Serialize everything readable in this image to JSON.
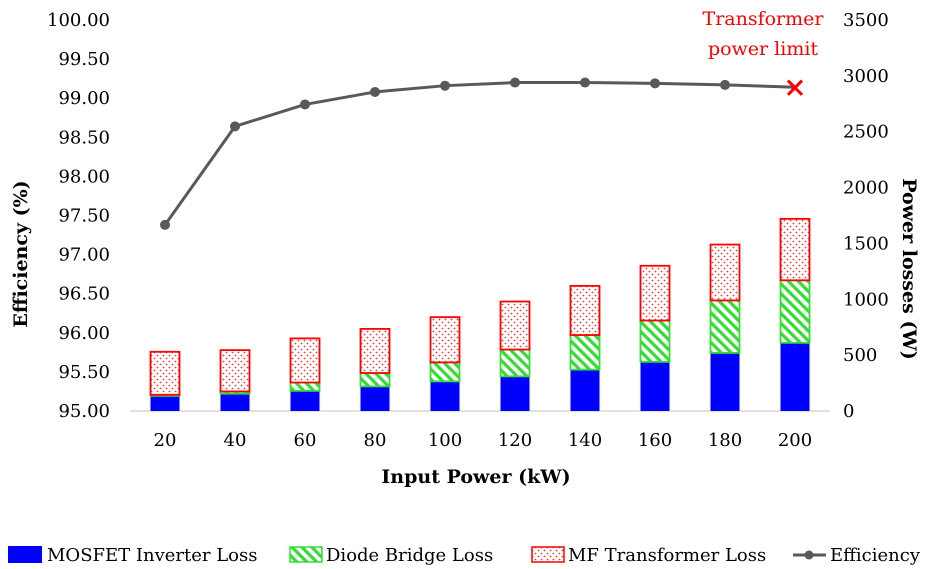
{
  "chart_data": {
    "type": "bar",
    "categories": [
      "20",
      "40",
      "60",
      "80",
      "100",
      "120",
      "140",
      "160",
      "180",
      "200"
    ],
    "xlabel": "Input Power (kW)",
    "ylabel_left": "Efficiency (%)",
    "ylabel_right": "Power losses (W)",
    "ylim_left": [
      95.0,
      100.0
    ],
    "ylim_right": [
      0,
      3500
    ],
    "left_ticks": [
      "95.00",
      "95.50",
      "96.00",
      "96.50",
      "97.00",
      "97.50",
      "98.00",
      "98.50",
      "99.00",
      "99.50",
      "100.00"
    ],
    "right_ticks": [
      "0",
      "500",
      "1000",
      "1500",
      "2000",
      "2500",
      "3000",
      "3500"
    ],
    "grid": false,
    "legend_position": "bottom",
    "series": [
      {
        "name": "MOSFET Inverter Loss",
        "kind": "stacked-bar",
        "axis": "right",
        "color": "#0000ff",
        "values": [
          135,
          155,
          180,
          220,
          265,
          310,
          370,
          440,
          520,
          610
        ]
      },
      {
        "name": "Diode Bridge Loss",
        "kind": "stacked-bar",
        "axis": "right",
        "color": "#33dd33",
        "values": [
          10,
          20,
          75,
          120,
          170,
          240,
          310,
          370,
          470,
          560
        ]
      },
      {
        "name": "MF Transformer Loss",
        "kind": "stacked-bar",
        "axis": "right",
        "color": "#ff0000",
        "values": [
          385,
          370,
          395,
          395,
          405,
          430,
          440,
          490,
          500,
          550
        ]
      },
      {
        "name": "Efficiency",
        "kind": "line",
        "axis": "left",
        "color": "#595959",
        "values": [
          97.38,
          98.64,
          98.92,
          99.08,
          99.16,
          99.2,
          99.2,
          99.19,
          99.17,
          99.14
        ]
      }
    ],
    "annotation": {
      "text_line1": "Transformer",
      "text_line2": "power limit",
      "marker": "×",
      "color": "#ff0000"
    }
  }
}
